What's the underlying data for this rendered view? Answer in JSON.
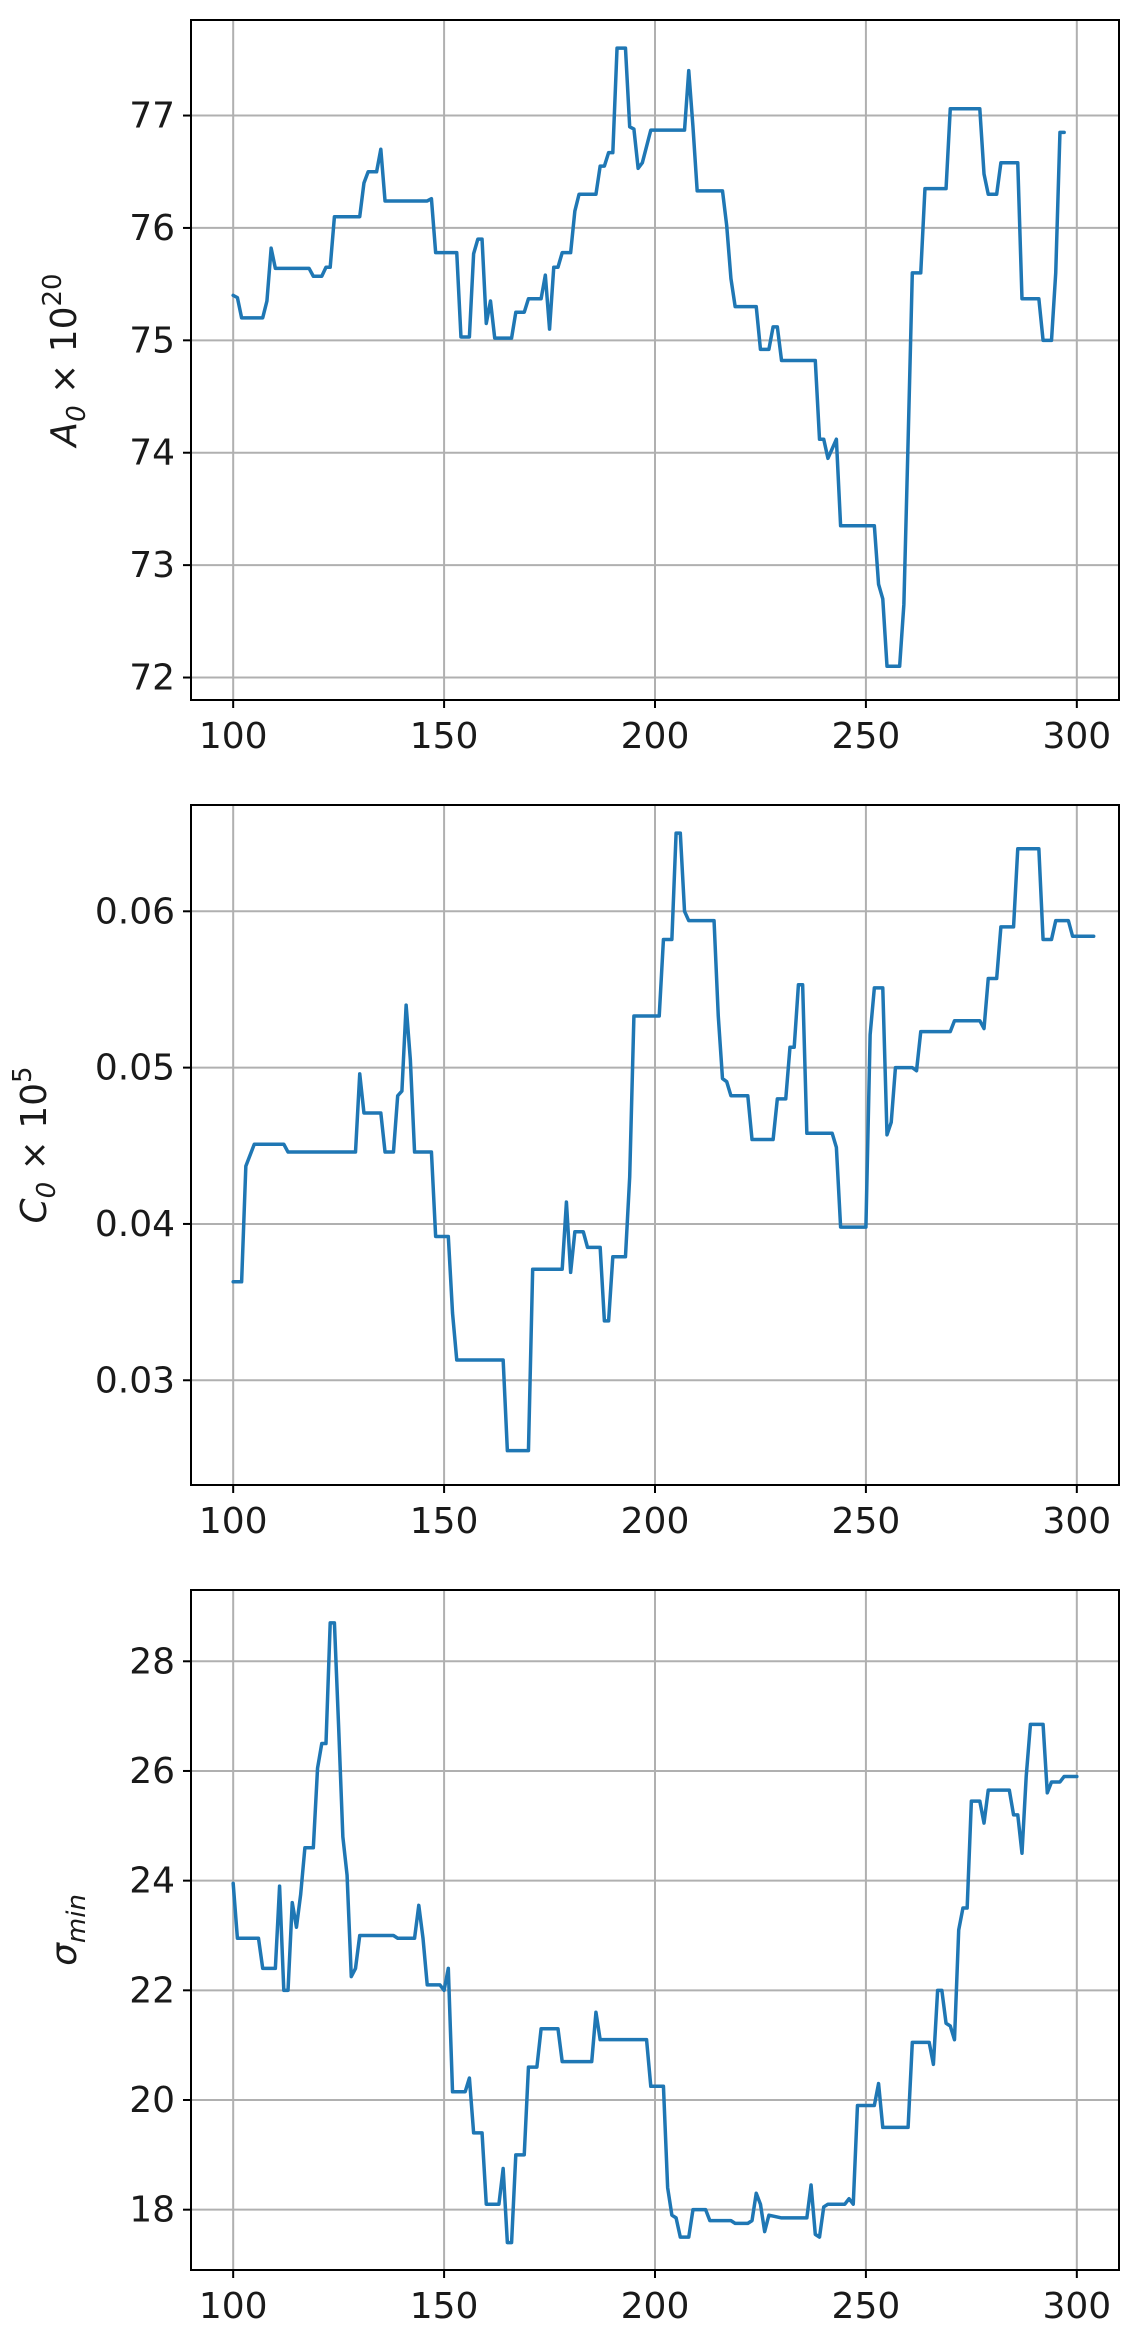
{
  "colors": {
    "series": "#1f77b4",
    "grid": "#b0b0b0",
    "frame": "#000000"
  },
  "chart_data": [
    {
      "type": "line",
      "title": "",
      "xlabel": "",
      "ylabel": "A_0 × 10^20",
      "ylabel_parts": {
        "base": "A",
        "sub": "0",
        "mid": " × 10",
        "sup": "20"
      },
      "xlim": [
        90,
        310
      ],
      "ylim": [
        71.8,
        77.85
      ],
      "xticks": [
        100,
        150,
        200,
        250,
        300
      ],
      "yticks": [
        72,
        73,
        74,
        75,
        76,
        77
      ],
      "grid": true,
      "points": [
        [
          100,
          75.4
        ],
        [
          101,
          75.38
        ],
        [
          102,
          75.2
        ],
        [
          105,
          75.2
        ],
        [
          107,
          75.2
        ],
        [
          108,
          75.35
        ],
        [
          109,
          75.82
        ],
        [
          110,
          75.64
        ],
        [
          118,
          75.64
        ],
        [
          119,
          75.57
        ],
        [
          121,
          75.57
        ],
        [
          122,
          75.65
        ],
        [
          123,
          75.65
        ],
        [
          124,
          76.1
        ],
        [
          130,
          76.1
        ],
        [
          131,
          76.4
        ],
        [
          132,
          76.5
        ],
        [
          134,
          76.5
        ],
        [
          135,
          76.7
        ],
        [
          136,
          76.24
        ],
        [
          146,
          76.24
        ],
        [
          147,
          76.26
        ],
        [
          148,
          75.78
        ],
        [
          151,
          75.78
        ],
        [
          152,
          75.78
        ],
        [
          153,
          75.78
        ],
        [
          154,
          75.03
        ],
        [
          156,
          75.03
        ],
        [
          157,
          75.77
        ],
        [
          158,
          75.9
        ],
        [
          159,
          75.9
        ],
        [
          160,
          75.15
        ],
        [
          161,
          75.35
        ],
        [
          162,
          75.02
        ],
        [
          166,
          75.02
        ],
        [
          167,
          75.25
        ],
        [
          168,
          75.25
        ],
        [
          169,
          75.25
        ],
        [
          170,
          75.37
        ],
        [
          171,
          75.37
        ],
        [
          172,
          75.37
        ],
        [
          173,
          75.37
        ],
        [
          174,
          75.58
        ],
        [
          175,
          75.1
        ],
        [
          176,
          75.65
        ],
        [
          177,
          75.65
        ],
        [
          178,
          75.78
        ],
        [
          180,
          75.78
        ],
        [
          181,
          76.15
        ],
        [
          182,
          76.3
        ],
        [
          186,
          76.3
        ],
        [
          187,
          76.55
        ],
        [
          188,
          76.55
        ],
        [
          189,
          76.67
        ],
        [
          190,
          76.67
        ],
        [
          191,
          77.6
        ],
        [
          193,
          77.6
        ],
        [
          194,
          76.9
        ],
        [
          195,
          76.88
        ],
        [
          196,
          76.53
        ],
        [
          197,
          76.58
        ],
        [
          199,
          76.87
        ],
        [
          207,
          76.87
        ],
        [
          208,
          77.4
        ],
        [
          209,
          76.9
        ],
        [
          210,
          76.33
        ],
        [
          216,
          76.33
        ],
        [
          217,
          76.02
        ],
        [
          218,
          75.55
        ],
        [
          219,
          75.3
        ],
        [
          224,
          75.3
        ],
        [
          225,
          74.92
        ],
        [
          227,
          74.92
        ],
        [
          228,
          75.12
        ],
        [
          229,
          75.12
        ],
        [
          230,
          74.82
        ],
        [
          238,
          74.82
        ],
        [
          239,
          74.12
        ],
        [
          240,
          74.12
        ],
        [
          241,
          73.95
        ],
        [
          243,
          74.12
        ],
        [
          244,
          73.35
        ],
        [
          252,
          73.35
        ],
        [
          253,
          72.83
        ],
        [
          254,
          72.7
        ],
        [
          255,
          72.1
        ],
        [
          258,
          72.1
        ],
        [
          259,
          72.65
        ],
        [
          260,
          74.1
        ],
        [
          261,
          75.6
        ],
        [
          263,
          75.6
        ],
        [
          264,
          76.35
        ],
        [
          269,
          76.35
        ],
        [
          270,
          77.06
        ],
        [
          277,
          77.06
        ],
        [
          278,
          76.48
        ],
        [
          279,
          76.3
        ],
        [
          281,
          76.3
        ],
        [
          282,
          76.58
        ],
        [
          286,
          76.58
        ],
        [
          287,
          75.37
        ],
        [
          291,
          75.37
        ],
        [
          292,
          75.0
        ],
        [
          294,
          75.0
        ],
        [
          295,
          75.6
        ],
        [
          296,
          76.85
        ],
        [
          297,
          76.85
        ]
      ]
    },
    {
      "type": "line",
      "title": "",
      "xlabel": "",
      "ylabel": "C_0 × 10^5",
      "ylabel_parts": {
        "base": "C",
        "sub": "0",
        "mid": " × 10",
        "sup": "5"
      },
      "xlim": [
        90,
        310
      ],
      "ylim": [
        0.0233,
        0.0668
      ],
      "xticks": [
        100,
        150,
        200,
        250,
        300
      ],
      "yticks": [
        0.03,
        0.04,
        0.05,
        0.06
      ],
      "grid": true,
      "points": [
        [
          100,
          0.0363
        ],
        [
          102,
          0.0363
        ],
        [
          103,
          0.0437
        ],
        [
          105,
          0.0451
        ],
        [
          112,
          0.0451
        ],
        [
          113,
          0.0446
        ],
        [
          129,
          0.0446
        ],
        [
          130,
          0.0496
        ],
        [
          131,
          0.0471
        ],
        [
          135,
          0.0471
        ],
        [
          136,
          0.0446
        ],
        [
          138,
          0.0446
        ],
        [
          139,
          0.0482
        ],
        [
          140,
          0.0485
        ],
        [
          141,
          0.054
        ],
        [
          142,
          0.0505
        ],
        [
          143,
          0.0446
        ],
        [
          147,
          0.0446
        ],
        [
          148,
          0.0392
        ],
        [
          151,
          0.0392
        ],
        [
          152,
          0.0343
        ],
        [
          153,
          0.0313
        ],
        [
          164,
          0.0313
        ],
        [
          165,
          0.0255
        ],
        [
          170,
          0.0255
        ],
        [
          171,
          0.0371
        ],
        [
          178,
          0.0371
        ],
        [
          179,
          0.0414
        ],
        [
          180,
          0.0369
        ],
        [
          181,
          0.0395
        ],
        [
          183,
          0.0395
        ],
        [
          184,
          0.0385
        ],
        [
          187,
          0.0385
        ],
        [
          188,
          0.0338
        ],
        [
          189,
          0.0338
        ],
        [
          190,
          0.0379
        ],
        [
          193,
          0.0379
        ],
        [
          194,
          0.043
        ],
        [
          195,
          0.0533
        ],
        [
          201,
          0.0533
        ],
        [
          202,
          0.0582
        ],
        [
          204,
          0.0582
        ],
        [
          205,
          0.065
        ],
        [
          206,
          0.065
        ],
        [
          207,
          0.06
        ],
        [
          208,
          0.0594
        ],
        [
          214,
          0.0594
        ],
        [
          215,
          0.0533
        ],
        [
          216,
          0.0493
        ],
        [
          217,
          0.0491
        ],
        [
          218,
          0.0482
        ],
        [
          222,
          0.0482
        ],
        [
          223,
          0.0454
        ],
        [
          228,
          0.0454
        ],
        [
          229,
          0.048
        ],
        [
          231,
          0.048
        ],
        [
          232,
          0.0513
        ],
        [
          233,
          0.0513
        ],
        [
          234,
          0.0553
        ],
        [
          235,
          0.0553
        ],
        [
          236,
          0.0458
        ],
        [
          242,
          0.0458
        ],
        [
          243,
          0.0449
        ],
        [
          244,
          0.0398
        ],
        [
          250,
          0.0398
        ],
        [
          251,
          0.0521
        ],
        [
          252,
          0.0551
        ],
        [
          254,
          0.0551
        ],
        [
          255,
          0.0457
        ],
        [
          256,
          0.0465
        ],
        [
          257,
          0.05
        ],
        [
          261,
          0.05
        ],
        [
          262,
          0.0498
        ],
        [
          263,
          0.0523
        ],
        [
          270,
          0.0523
        ],
        [
          271,
          0.053
        ],
        [
          277,
          0.053
        ],
        [
          278,
          0.0525
        ],
        [
          279,
          0.0557
        ],
        [
          281,
          0.0557
        ],
        [
          282,
          0.059
        ],
        [
          285,
          0.059
        ],
        [
          286,
          0.064
        ],
        [
          291,
          0.064
        ],
        [
          292,
          0.0582
        ],
        [
          294,
          0.0582
        ],
        [
          295,
          0.0594
        ],
        [
          298,
          0.0594
        ],
        [
          299,
          0.0584
        ],
        [
          304,
          0.0584
        ]
      ]
    },
    {
      "type": "line",
      "title": "",
      "xlabel": "",
      "ylabel": "σ_min",
      "ylabel_parts": {
        "base": "σ",
        "sub": "min",
        "mid": "",
        "sup": ""
      },
      "xlim": [
        90,
        310
      ],
      "ylim": [
        16.9,
        29.3
      ],
      "xticks": [
        100,
        150,
        200,
        250,
        300
      ],
      "yticks": [
        18,
        20,
        22,
        24,
        26,
        28
      ],
      "grid": true,
      "points": [
        [
          100,
          23.95
        ],
        [
          101,
          22.95
        ],
        [
          106,
          22.95
        ],
        [
          107,
          22.4
        ],
        [
          110,
          22.4
        ],
        [
          111,
          23.9
        ],
        [
          112,
          22.0
        ],
        [
          113,
          22.0
        ],
        [
          114,
          23.6
        ],
        [
          115,
          23.15
        ],
        [
          116,
          23.75
        ],
        [
          117,
          24.6
        ],
        [
          119,
          24.6
        ],
        [
          120,
          26.05
        ],
        [
          121,
          26.5
        ],
        [
          122,
          26.5
        ],
        [
          123,
          28.7
        ],
        [
          124,
          28.7
        ],
        [
          125,
          26.8
        ],
        [
          126,
          24.8
        ],
        [
          127,
          24.1
        ],
        [
          128,
          22.25
        ],
        [
          129,
          22.4
        ],
        [
          130,
          23.0
        ],
        [
          138,
          23.0
        ],
        [
          139,
          22.95
        ],
        [
          143,
          22.95
        ],
        [
          144,
          23.55
        ],
        [
          145,
          22.95
        ],
        [
          146,
          22.1
        ],
        [
          149,
          22.1
        ],
        [
          150,
          22.0
        ],
        [
          151,
          22.4
        ],
        [
          152,
          20.15
        ],
        [
          155,
          20.15
        ],
        [
          156,
          20.4
        ],
        [
          157,
          19.4
        ],
        [
          159,
          19.4
        ],
        [
          160,
          18.1
        ],
        [
          163,
          18.1
        ],
        [
          164,
          18.75
        ],
        [
          165,
          17.4
        ],
        [
          166,
          17.4
        ],
        [
          167,
          19.0
        ],
        [
          169,
          19.0
        ],
        [
          170,
          20.6
        ],
        [
          172,
          20.6
        ],
        [
          173,
          21.3
        ],
        [
          177,
          21.3
        ],
        [
          178,
          20.7
        ],
        [
          185,
          20.7
        ],
        [
          186,
          21.6
        ],
        [
          187,
          21.1
        ],
        [
          191,
          21.1
        ],
        [
          192,
          21.1
        ],
        [
          198,
          21.1
        ],
        [
          199,
          20.25
        ],
        [
          202,
          20.25
        ],
        [
          203,
          18.4
        ],
        [
          204,
          17.9
        ],
        [
          205,
          17.85
        ],
        [
          206,
          17.5
        ],
        [
          208,
          17.5
        ],
        [
          209,
          18.0
        ],
        [
          212,
          18.0
        ],
        [
          213,
          17.8
        ],
        [
          218,
          17.8
        ],
        [
          219,
          17.75
        ],
        [
          222,
          17.75
        ],
        [
          223,
          17.8
        ],
        [
          224,
          18.3
        ],
        [
          225,
          18.1
        ],
        [
          226,
          17.6
        ],
        [
          227,
          17.9
        ],
        [
          230,
          17.85
        ],
        [
          236,
          17.85
        ],
        [
          237,
          18.45
        ],
        [
          238,
          17.55
        ],
        [
          239,
          17.5
        ],
        [
          240,
          18.05
        ],
        [
          241,
          18.1
        ],
        [
          245,
          18.1
        ],
        [
          246,
          18.2
        ],
        [
          247,
          18.1
        ],
        [
          248,
          19.9
        ],
        [
          252,
          19.9
        ],
        [
          253,
          20.3
        ],
        [
          254,
          19.5
        ],
        [
          260,
          19.5
        ],
        [
          261,
          21.05
        ],
        [
          265,
          21.05
        ],
        [
          266,
          20.65
        ],
        [
          267,
          22.0
        ],
        [
          268,
          22.0
        ],
        [
          269,
          21.4
        ],
        [
          270,
          21.35
        ],
        [
          271,
          21.1
        ],
        [
          272,
          23.1
        ],
        [
          273,
          23.5
        ],
        [
          274,
          23.5
        ],
        [
          275,
          25.45
        ],
        [
          277,
          25.45
        ],
        [
          278,
          25.05
        ],
        [
          279,
          25.65
        ],
        [
          284,
          25.65
        ],
        [
          285,
          25.2
        ],
        [
          286,
          25.2
        ],
        [
          287,
          24.5
        ],
        [
          288,
          25.9
        ],
        [
          289,
          26.85
        ],
        [
          292,
          26.85
        ],
        [
          293,
          25.6
        ],
        [
          294,
          25.8
        ],
        [
          296,
          25.8
        ],
        [
          297,
          25.9
        ],
        [
          300,
          25.9
        ]
      ]
    }
  ]
}
